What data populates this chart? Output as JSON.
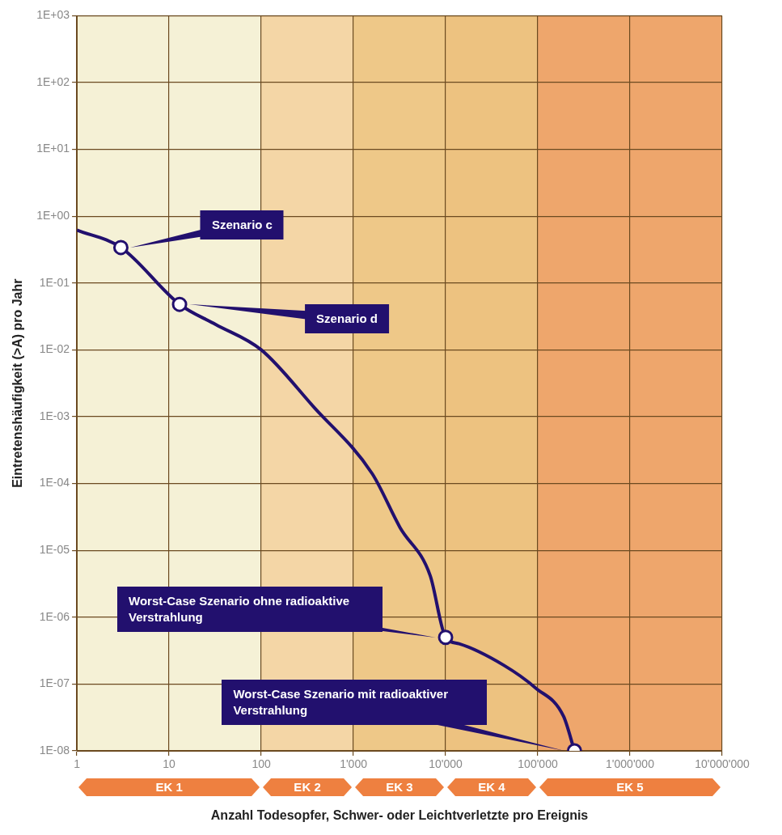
{
  "chart_data": {
    "type": "line",
    "xlabel": "Anzahl Todesopfer, Schwer- oder Leichtverletzte pro Ereignis",
    "ylabel": "Eintretenshäufigkeit (>A) pro Jahr",
    "log": "xy",
    "grid": true,
    "legend": false,
    "xlim": [
      1,
      10000000
    ],
    "xticks": [
      1,
      10,
      100,
      {
        "value": 1000,
        "label": "1'000"
      },
      {
        "value": 10000,
        "label": "10'000"
      },
      {
        "value": 100000,
        "label": "100'000"
      },
      {
        "value": 1000000,
        "label": "1'000'000"
      },
      {
        "value": 10000000,
        "label": "10'000'000"
      }
    ],
    "ylim": [
      1e-08,
      1000
    ],
    "yticks": [
      {
        "value": 1e-08,
        "label": "1E-08"
      },
      {
        "value": 1e-07,
        "label": "1E-07"
      },
      {
        "value": 1e-06,
        "label": "1E-06"
      },
      {
        "value": 1e-05,
        "label": "1E-05"
      },
      {
        "value": 0.0001,
        "label": "1E-04"
      },
      {
        "value": 0.001,
        "label": "1E-03"
      },
      {
        "value": 0.01,
        "label": "1E-02"
      },
      {
        "value": 0.1,
        "label": "1E-01"
      },
      {
        "value": 1,
        "label": "1E+00"
      },
      {
        "value": 10,
        "label": "1E+01"
      },
      {
        "value": 100,
        "label": "1E+02"
      },
      {
        "value": 1000,
        "label": "1E+03"
      }
    ],
    "bands": [
      {
        "axis": "x",
        "from": 1,
        "to": 100,
        "label": "EK 1",
        "color": "#f5f1d6"
      },
      {
        "axis": "x",
        "from": 100,
        "to": 1000,
        "label": "EK 2",
        "color": "#f4d6a6"
      },
      {
        "axis": "x",
        "from": 1000,
        "to": 10000,
        "label": "EK 3",
        "color": "#eec888"
      },
      {
        "axis": "x",
        "from": 10000,
        "to": 100000,
        "label": "EK 4",
        "color": "#edc280"
      },
      {
        "axis": "x",
        "from": 100000,
        "to": 10000000,
        "label": "EK 5",
        "color": "#eea66c"
      }
    ],
    "series": [
      {
        "color": "#22106e",
        "marker": "none",
        "line_style": "solid",
        "x": [
          1,
          3,
          13,
          32,
          100,
          370,
          1600,
          3200,
          6800,
          10000,
          14000,
          43000,
          95000,
          190000,
          250000
        ],
        "values": [
          0.62,
          0.34,
          0.048,
          0.024,
          0.01,
          0.0014,
          0.00014,
          2.2e-05,
          4.2e-06,
          5e-07,
          4e-07,
          1.9e-07,
          8.7e-08,
          3.3e-08,
          1e-08
        ]
      },
      {
        "type": "scatter",
        "color": "#22106e",
        "marker": "circle",
        "x": [
          3,
          13,
          10000,
          250000
        ],
        "values": [
          0.34,
          0.048,
          5e-07,
          1e-08
        ]
      }
    ],
    "annotations": [
      "Szenario c",
      "Szenario d",
      "Worst-Case Szenario ohne radioaktive Verstrahlung",
      "Worst-Case Szenario mit radioaktiver Verstrahlung"
    ]
  }
}
